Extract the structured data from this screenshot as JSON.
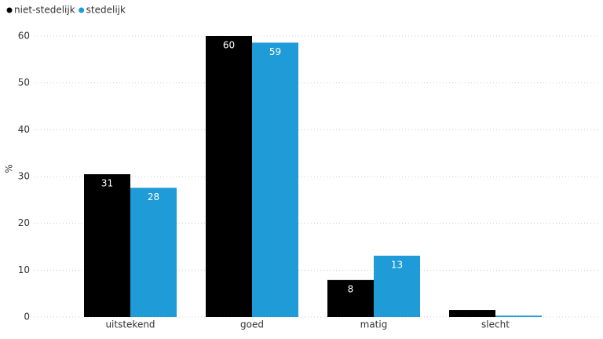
{
  "chart_data": {
    "type": "bar",
    "y_label": "%",
    "categories": [
      "uitstekend",
      "goed",
      "matig",
      "slecht"
    ],
    "series": [
      {
        "name": "niet-stedelijk",
        "color": "#000000",
        "values": [
          30.5,
          60,
          7.9,
          1.5
        ],
        "value_labels": [
          "31",
          "60",
          "8",
          null
        ]
      },
      {
        "name": "stedelijk",
        "color": "#1f9bd7",
        "values": [
          27.6,
          58.6,
          13.1,
          0.3
        ],
        "value_labels": [
          "28",
          "59",
          "13",
          null
        ]
      }
    ],
    "ylim": [
      0,
      60
    ],
    "yticks": [
      0,
      10,
      20,
      30,
      40,
      50,
      60
    ],
    "grid": true,
    "legend": "top-left"
  }
}
